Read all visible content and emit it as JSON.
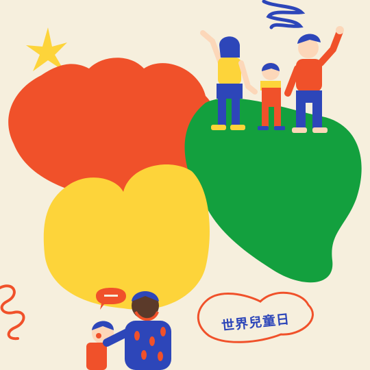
{
  "title": {
    "text": "世界兒童日"
  },
  "palette": {
    "background": "#f6efdd",
    "red": "#f0512a",
    "yellow": "#fdd43a",
    "green": "#13a03e",
    "blue": "#2d46b9",
    "skin": "#fcd7b9",
    "dark_skin": "#5b3a2a"
  },
  "decorations": [
    "star-icon",
    "scribble-icon",
    "squiggle-icon",
    "speech-bubble-icon"
  ]
}
